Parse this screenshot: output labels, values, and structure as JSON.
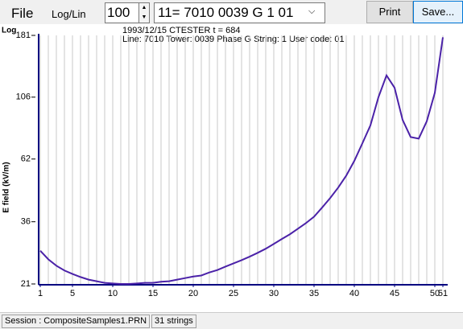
{
  "toolbar": {
    "file": "File",
    "mode": "Log/Lin",
    "spin": "100",
    "select": "11= 7010 0039 G  1 01",
    "print": "Print",
    "save": "Save..."
  },
  "chart_data": {
    "type": "line",
    "scale_label": "Log",
    "subtitle_lines": [
      "1993/12/15 CTESTER      t = 684",
      "Line: 7010 Tower: 0039 Phase G String:  1 User code: 01"
    ],
    "ylabel": "E field (kV/m)",
    "log_scale": true,
    "grid": true,
    "x": [
      1,
      2,
      3,
      4,
      5,
      6,
      7,
      8,
      9,
      10,
      11,
      12,
      13,
      14,
      15,
      16,
      17,
      18,
      19,
      20,
      21,
      22,
      23,
      24,
      25,
      26,
      27,
      28,
      29,
      30,
      31,
      32,
      33,
      34,
      35,
      36,
      37,
      38,
      39,
      40,
      41,
      42,
      43,
      44,
      45,
      46,
      47,
      48,
      49,
      50,
      51
    ],
    "series": [
      {
        "name": "E field",
        "color": "#4b22a8",
        "values": [
          28,
          26,
          24.6,
          23.6,
          22.9,
          22.3,
          21.8,
          21.5,
          21.2,
          21.1,
          21,
          21,
          21.1,
          21.2,
          21.2,
          21.4,
          21.5,
          21.8,
          22.1,
          22.4,
          22.6,
          23.2,
          23.7,
          24.4,
          25.1,
          25.8,
          26.6,
          27.5,
          28.5,
          29.7,
          31,
          32.3,
          33.9,
          35.6,
          37.6,
          40.7,
          44.2,
          48.4,
          53.7,
          61,
          71,
          83,
          106,
          128,
          115,
          87,
          75,
          74,
          86,
          110,
          178
        ]
      }
    ],
    "xlim": [
      1,
      51
    ],
    "xticks": [
      1,
      5,
      10,
      15,
      20,
      25,
      30,
      35,
      40,
      45,
      50,
      51
    ],
    "ylim": [
      21,
      181
    ],
    "yticks": [
      21,
      36,
      62,
      106,
      181
    ]
  },
  "status": {
    "session": "Session : CompositeSamples1.PRN",
    "count": "31 strings"
  }
}
